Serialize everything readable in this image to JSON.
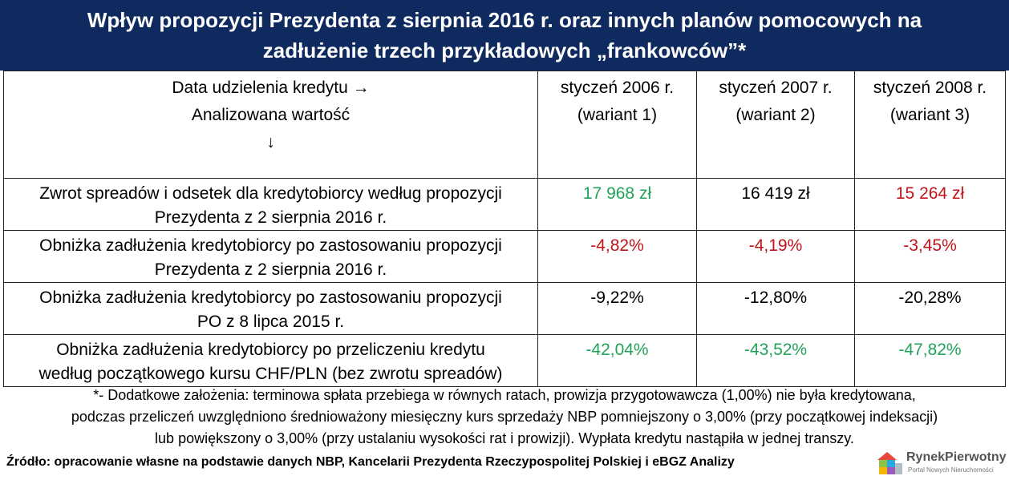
{
  "header": {
    "title": [
      "Wpływ propozycji Prezydenta z sierpnia 2016 r. oraz innych planów pomocowych na",
      "zadłużenie trzech przykładowych „frankowców”*"
    ]
  },
  "table": {
    "corner": [
      "Data udzielenia kredytu →",
      "Analizowana wartość",
      "↓"
    ],
    "columns": [
      [
        "styczeń 2006 r.",
        "(wariant 1)"
      ],
      [
        "styczeń 2007 r.",
        "(wariant 2)"
      ],
      [
        "styczeń 2008 r.",
        "(wariant 3)"
      ]
    ],
    "rows": [
      {
        "label": [
          "Zwrot spreadów i odsetek dla kredytobiorcy według propozycji",
          "Prezydenta z 2 sierpnia 2016 r."
        ],
        "values": [
          "17 968 zł",
          "16 419 zł",
          "15 264 zł"
        ]
      },
      {
        "label": [
          "Obniżka zadłużenia kredytobiorcy po zastosowaniu propozycji",
          "Prezydenta z 2 sierpnia 2016 r."
        ],
        "values": [
          "-4,82%",
          "-4,19%",
          "-3,45%"
        ]
      },
      {
        "label": [
          "Obniżka zadłużenia kredytobiorcy po zastosowaniu propozycji",
          "PO z 8 lipca 2015 r."
        ],
        "values": [
          "-9,22%",
          "-12,80%",
          "-20,28%"
        ]
      },
      {
        "label": [
          "Obniżka zadłużenia kredytobiorcy po przeliczeniu kredytu",
          "według początkowego kursu CHF/PLN (bez zwrotu spreadów)"
        ],
        "values": [
          "-42,04%",
          "-43,52%",
          "-47,82%"
        ]
      }
    ]
  },
  "footnote": [
    "*- Dodatkowe założenia: terminowa spłata przebiega w równych ratach, prowizja przygotowawcza (1,00%) nie była kredytowana,",
    "podczas przeliczeń uwzględniono średnioważony miesięczny kurs sprzedaży NBP pomniejszony o 3,00% (przy początkowej indeksacji)",
    "lub powiększony o 3,00% (przy ustalaniu wysokości rat i prowizji). Wypłata kredytu nastąpiła w jednej transzy."
  ],
  "source": "Źródło: opracowanie własne na podstawie danych NBP, Kancelarii Prezydenta Rzeczypospolitej Polskiej i eBGZ Analizy",
  "logo": {
    "name": "RynekPierwotny",
    "tagline": "Portal Nowych Nieruchomości"
  }
}
